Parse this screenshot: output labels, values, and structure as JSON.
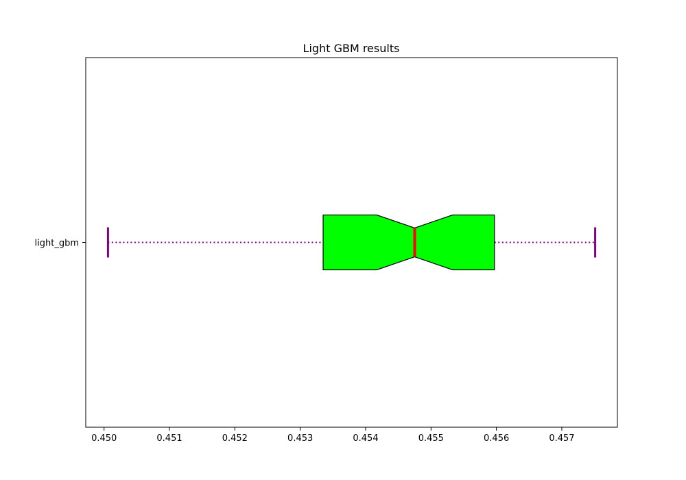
{
  "chart_data": {
    "type": "boxplot",
    "title": "Light GBM results",
    "orientation": "horizontal",
    "notched": true,
    "xlim": [
      0.44972,
      0.45785
    ],
    "x_ticks": [
      "0.450",
      "0.451",
      "0.452",
      "0.453",
      "0.454",
      "0.455",
      "0.456",
      "0.457"
    ],
    "categories": [
      "light_gbm"
    ],
    "boxes": [
      {
        "name": "light_gbm",
        "whisker_low": 0.45006,
        "q1": 0.45335,
        "median": 0.45475,
        "q3": 0.45597,
        "whisker_high": 0.45751,
        "notch_low": 0.45417,
        "notch_high": 0.45533
      }
    ],
    "colors": {
      "box_fill": "#00ff00",
      "box_edge": "#000000",
      "median": "#ff0000",
      "whisker": "#800080",
      "cap": "#800080"
    },
    "grid": false
  }
}
